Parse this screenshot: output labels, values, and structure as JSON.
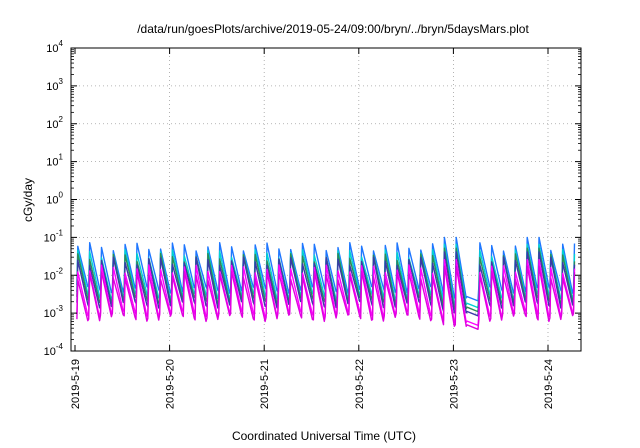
{
  "chart_data": {
    "type": "line",
    "title": "/data/run/goesPlots/archive/2019-05-24/09:00/bryn/../bryn/5daysMars.plot",
    "xlabel": "Coordinated Universal Time (UTC)",
    "ylabel": "cGy/day",
    "y_scale": "log",
    "ylim": [
      0.0001,
      10000
    ],
    "y_ticks": [
      {
        "value": 0.0001,
        "base": "10",
        "exp": "-4"
      },
      {
        "value": 0.001,
        "base": "10",
        "exp": "-3"
      },
      {
        "value": 0.01,
        "base": "10",
        "exp": "-2"
      },
      {
        "value": 0.1,
        "base": "10",
        "exp": "-1"
      },
      {
        "value": 1,
        "base": "10",
        "exp": "0"
      },
      {
        "value": 10,
        "base": "10",
        "exp": "1"
      },
      {
        "value": 100,
        "base": "10",
        "exp": "2"
      },
      {
        "value": 1000,
        "base": "10",
        "exp": "3"
      },
      {
        "value": 10000,
        "base": "10",
        "exp": "4"
      }
    ],
    "x_ticks": [
      "2019-5-19",
      "2019-5-20",
      "2019-5-21",
      "2019-5-22",
      "2019-5-23",
      "2019-5-24"
    ],
    "x_range_days": [
      0,
      5.4
    ],
    "grid": true,
    "legend": "none",
    "sawtooth": {
      "period_days": 0.125,
      "start_day": 0.02,
      "end_day": 5.4,
      "dropout": {
        "start_day": 4.05,
        "end_day": 4.21,
        "level_factor": 0.09
      },
      "dropout_peak_level": 0.1,
      "late_peak_level": 0.1
    },
    "series": [
      {
        "color": "#1f77ff",
        "peak": 0.058,
        "low": 0.0042
      },
      {
        "color": "#00d2d2",
        "peak": 0.038,
        "low": 0.0028
      },
      {
        "color": "#2e8b57",
        "peak": 0.03,
        "low": 0.0022
      },
      {
        "color": "#3a3aa8",
        "peak": 0.024,
        "low": 0.0017
      },
      {
        "color": "#ff00ff",
        "peak": 0.015,
        "low": 0.00095
      },
      {
        "color": "#e000e0",
        "peak": 0.01,
        "low": 0.00075
      }
    ]
  }
}
